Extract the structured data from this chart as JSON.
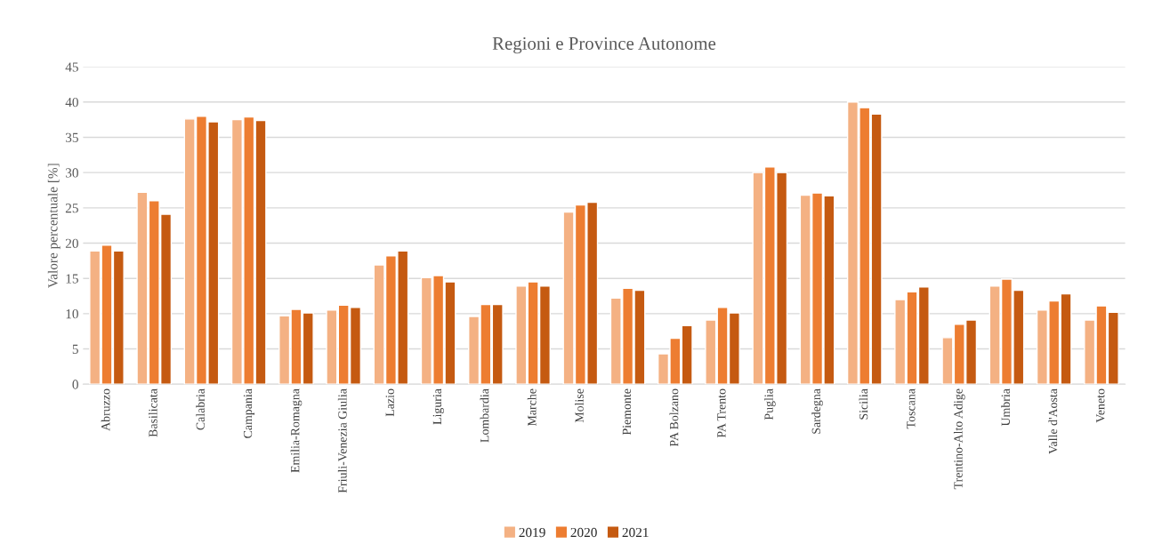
{
  "chart_data": {
    "type": "bar",
    "title": "Regioni e Province Autonome",
    "ylabel": "Valore percentuale [%]",
    "categories": [
      "Abruzzo",
      "Basilicata",
      "Calabria",
      "Campania",
      "Emilia-Romagna",
      "Friuli-Venezia Giulia",
      "Lazio",
      "Liguria",
      "Lombardia",
      "Marche",
      "Molise",
      "Piemonte",
      "PA Bolzano",
      "PA Trento",
      "Puglia",
      "Sardegna",
      "Sicilia",
      "Toscana",
      "Trentino-Alto Adige",
      "Umbria",
      "Valle d'Aosta",
      "Veneto"
    ],
    "series": [
      {
        "name": "2019",
        "color": "#f4b183",
        "values": [
          18.9,
          27.2,
          37.6,
          37.5,
          9.7,
          10.5,
          16.9,
          15.1,
          9.6,
          13.9,
          24.4,
          12.2,
          4.3,
          9.1,
          30.0,
          26.8,
          40.0,
          12.0,
          6.6,
          13.9,
          10.5,
          9.1
        ]
      },
      {
        "name": "2020",
        "color": "#ed7d31",
        "values": [
          19.7,
          26.0,
          38.0,
          37.9,
          10.6,
          11.2,
          18.2,
          15.4,
          11.3,
          14.5,
          25.4,
          13.6,
          6.5,
          10.9,
          30.8,
          27.1,
          39.2,
          13.1,
          8.5,
          14.9,
          11.8,
          11.1
        ]
      },
      {
        "name": "2021",
        "color": "#c55a11",
        "values": [
          18.9,
          24.1,
          37.2,
          37.4,
          10.1,
          10.9,
          18.9,
          14.5,
          11.3,
          13.9,
          25.8,
          13.3,
          8.3,
          10.1,
          30.0,
          26.7,
          38.3,
          13.8,
          9.1,
          13.3,
          12.8,
          10.2
        ]
      }
    ],
    "ylim": [
      0,
      45
    ],
    "yticks": [
      0,
      5,
      10,
      15,
      20,
      25,
      30,
      35,
      40,
      45
    ],
    "grid": "y",
    "legend": "bottom"
  }
}
